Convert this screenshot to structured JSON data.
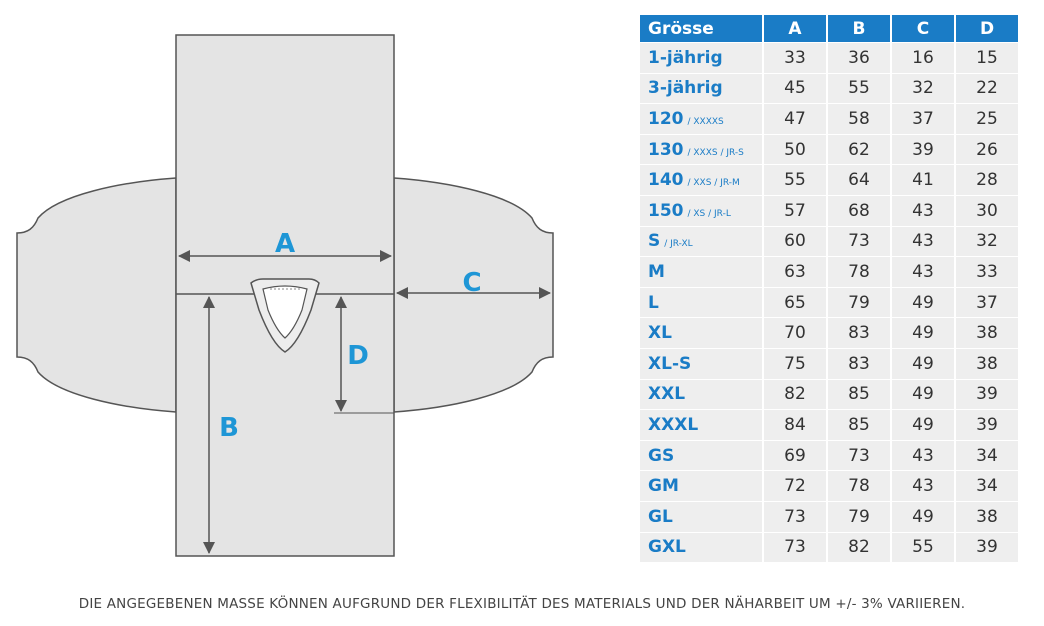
{
  "diagram": {
    "labels": {
      "a": "A",
      "b": "B",
      "c": "C",
      "d": "D"
    }
  },
  "table": {
    "headers": [
      "Grösse",
      "A",
      "B",
      "C",
      "D"
    ],
    "rows": [
      {
        "size": "1-jährig",
        "sub": "",
        "values": [
          "33",
          "36",
          "16",
          "15"
        ]
      },
      {
        "size": "3-jährig",
        "sub": "",
        "values": [
          "45",
          "55",
          "32",
          "22"
        ]
      },
      {
        "size": "120",
        "sub": "/ XXXXS",
        "values": [
          "47",
          "58",
          "37",
          "25"
        ]
      },
      {
        "size": "130",
        "sub": "/ XXXS / JR-S",
        "values": [
          "50",
          "62",
          "39",
          "26"
        ]
      },
      {
        "size": "140",
        "sub": "/ XXS / JR-M",
        "values": [
          "55",
          "64",
          "41",
          "28"
        ]
      },
      {
        "size": "150",
        "sub": "/ XS / JR-L",
        "values": [
          "57",
          "68",
          "43",
          "30"
        ]
      },
      {
        "size": "S",
        "sub": "/ JR-XL",
        "values": [
          "60",
          "73",
          "43",
          "32"
        ]
      },
      {
        "size": "M",
        "sub": "",
        "values": [
          "63",
          "78",
          "43",
          "33"
        ]
      },
      {
        "size": "L",
        "sub": "",
        "values": [
          "65",
          "79",
          "49",
          "37"
        ]
      },
      {
        "size": "XL",
        "sub": "",
        "values": [
          "70",
          "83",
          "49",
          "38"
        ]
      },
      {
        "size": "XL-S",
        "sub": "",
        "values": [
          "75",
          "83",
          "49",
          "38"
        ]
      },
      {
        "size": "XXL",
        "sub": "",
        "values": [
          "82",
          "85",
          "49",
          "39"
        ]
      },
      {
        "size": "XXXL",
        "sub": "",
        "values": [
          "84",
          "85",
          "49",
          "39"
        ]
      },
      {
        "size": "GS",
        "sub": "",
        "values": [
          "69",
          "73",
          "43",
          "34"
        ]
      },
      {
        "size": "GM",
        "sub": "",
        "values": [
          "72",
          "78",
          "43",
          "34"
        ]
      },
      {
        "size": "GL",
        "sub": "",
        "values": [
          "73",
          "79",
          "49",
          "38"
        ]
      },
      {
        "size": "GXL",
        "sub": "",
        "values": [
          "73",
          "82",
          "55",
          "39"
        ]
      }
    ]
  },
  "disclaimer": "DIE ANGEGEBENEN MASSE KÖNNEN AUFGRUND DER FLEXIBILITÄT DES MATERIALS UND DER NÄHARBEIT UM +/- 3% VARIIEREN.",
  "colors": {
    "accent": "#1a7cc6",
    "letter": "#1e96d6",
    "cell_bg": "#eeeeee",
    "shirt_fill": "#e4e4e4",
    "outline": "#555555"
  }
}
